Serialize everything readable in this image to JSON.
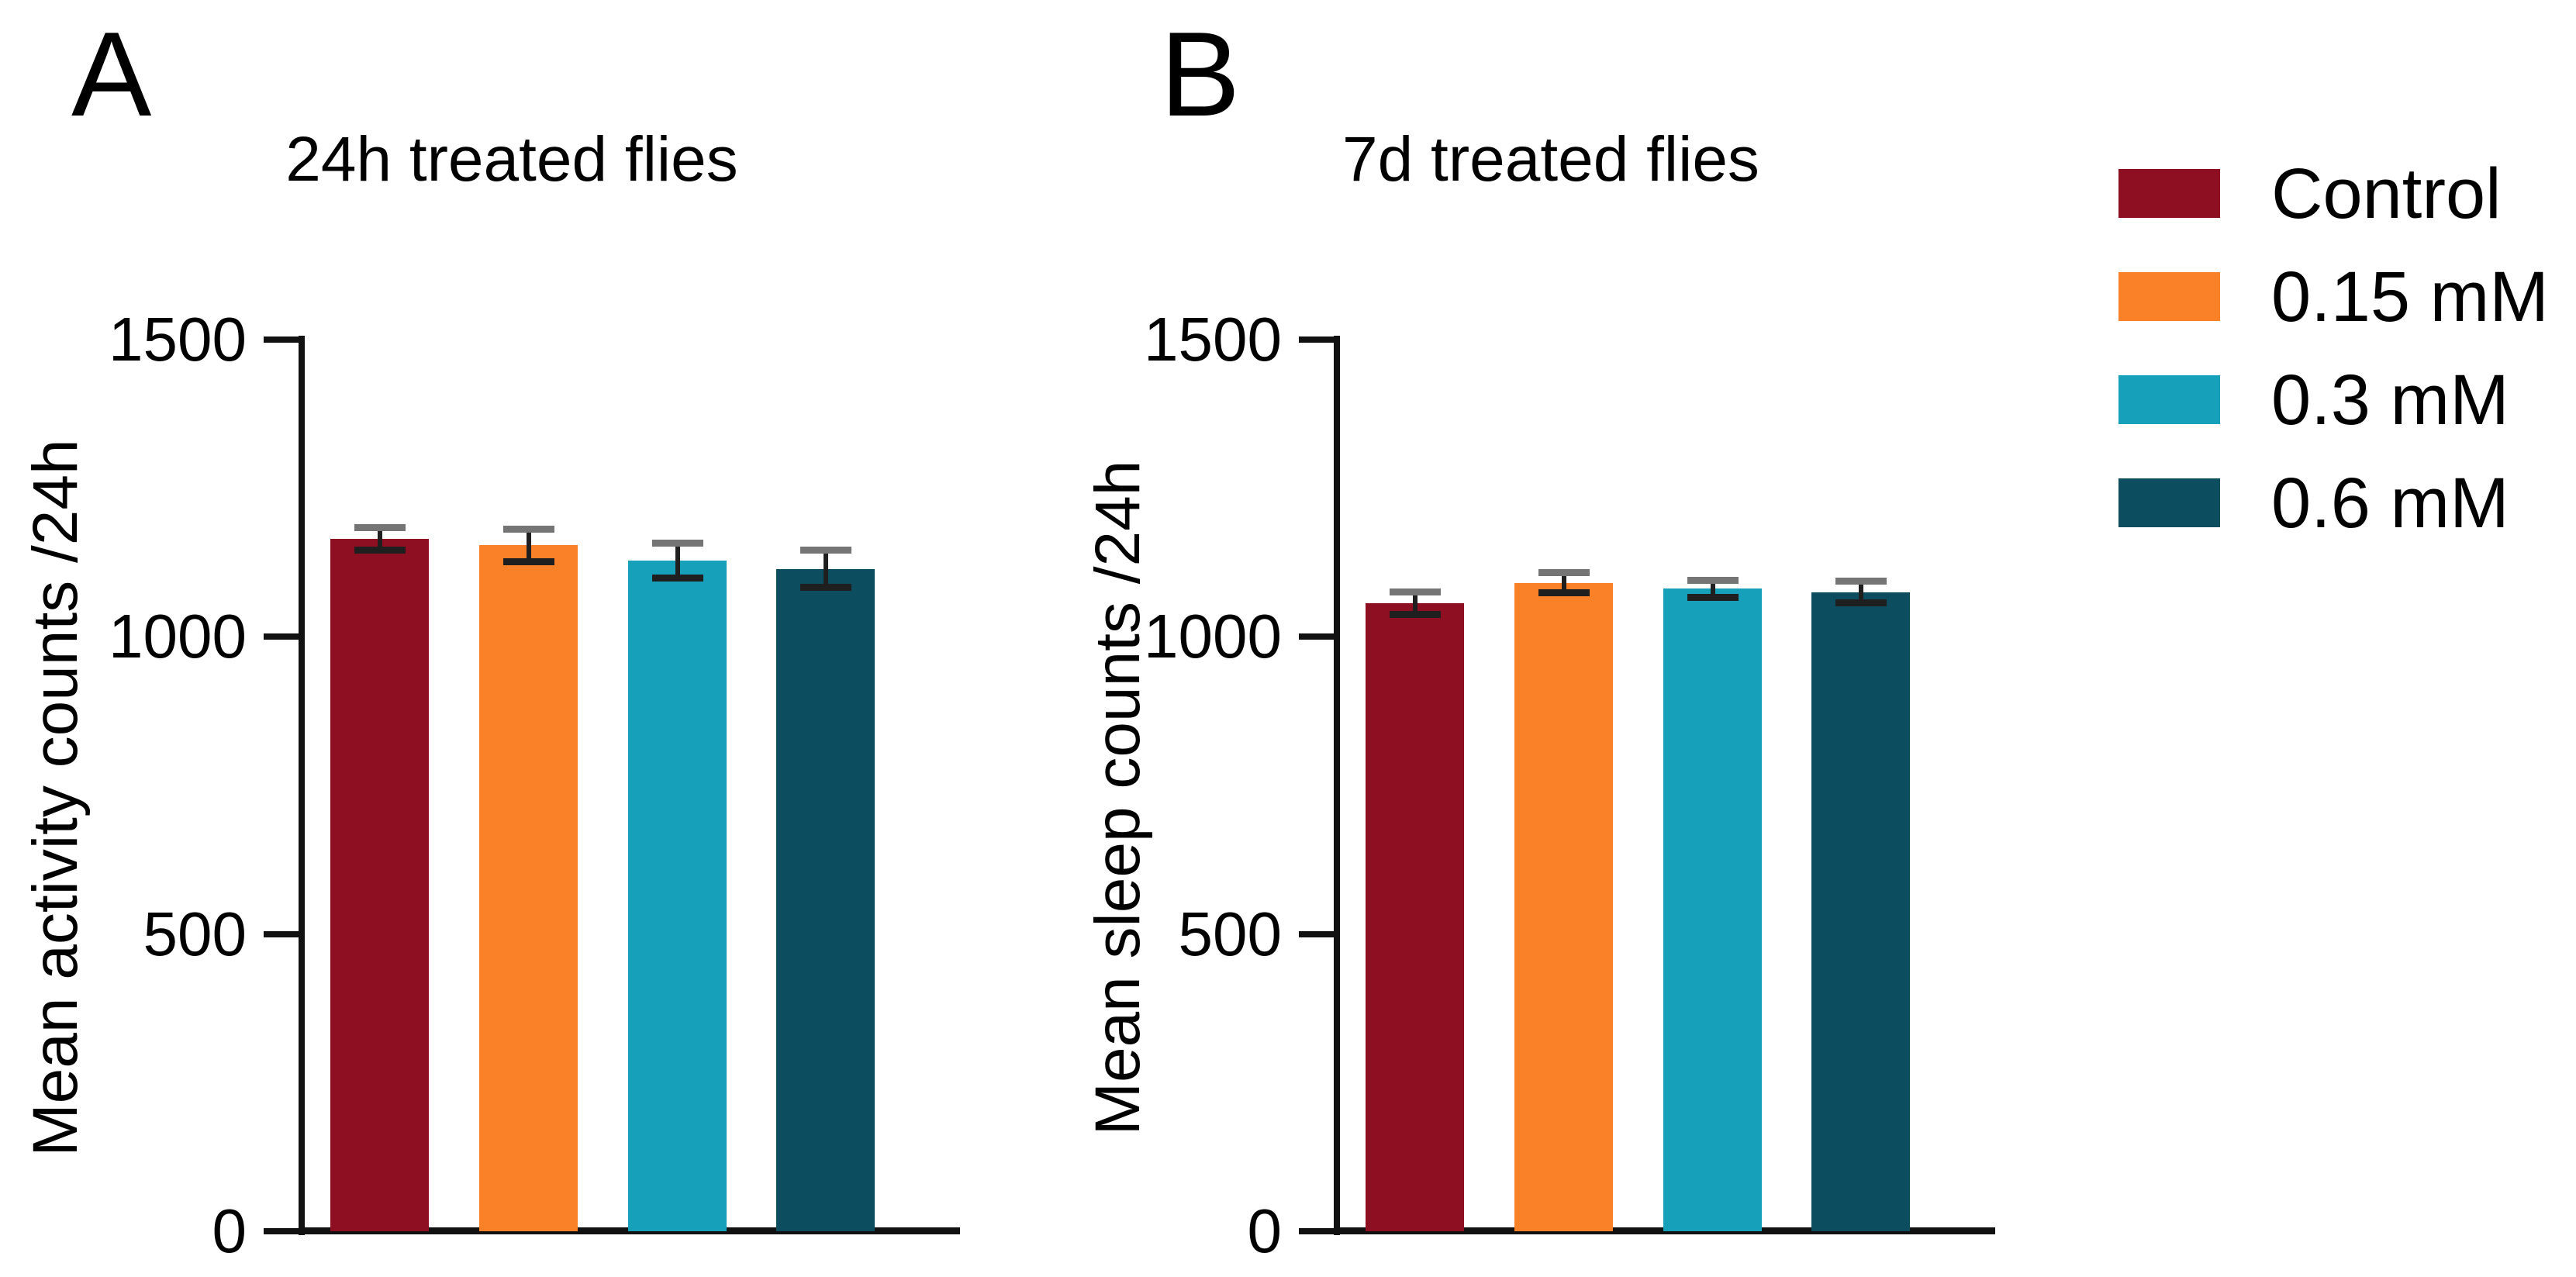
{
  "page": {
    "background": "#ffffff"
  },
  "figure": {
    "panels": [
      {
        "letter": "A",
        "title": "24h treated flies",
        "ylabel": "Mean activity counts /24h"
      },
      {
        "letter": "B",
        "title": "7d treated flies",
        "ylabel": "Mean sleep counts /24h"
      }
    ],
    "legend": {
      "items": [
        {
          "label": "Control",
          "color": "#8E0F22"
        },
        {
          "label": "0.15 mM",
          "color": "#FA8128"
        },
        {
          "label": "0.3 mM",
          "color": "#16A0BA"
        },
        {
          "label": "0.6 mM",
          "color": "#0C4D60"
        }
      ]
    }
  },
  "colors": {
    "axis": "#111111",
    "error_bar": "#1f1f1f",
    "error_cap_top": "#757575",
    "text": "#000000",
    "background": "#ffffff"
  },
  "chart_data": [
    {
      "type": "bar",
      "panel": "A",
      "title": "24h treated flies",
      "xlabel": "",
      "ylabel": "Mean activity counts /24h",
      "categories": [
        "Control",
        "0.15 mM",
        "0.3 mM",
        "0.6 mM"
      ],
      "values": [
        1165,
        1154,
        1128,
        1114
      ],
      "errors_sem": [
        25,
        33,
        35,
        37
      ],
      "bar_colors": [
        "#8E0F22",
        "#FA8128",
        "#16A0BA",
        "#0C4D60"
      ],
      "ylim": [
        0,
        1500
      ],
      "yticks": [
        0,
        500,
        1000,
        1500
      ],
      "grid": false,
      "legend_position": "right"
    },
    {
      "type": "bar",
      "panel": "B",
      "title": "7d treated flies",
      "xlabel": "",
      "ylabel": "Mean sleep counts /24h",
      "categories": [
        "Control",
        "0.15 mM",
        "0.3 mM",
        "0.6 mM"
      ],
      "values": [
        1057,
        1091,
        1081,
        1075
      ],
      "errors_sem": [
        25,
        23,
        20,
        24
      ],
      "bar_colors": [
        "#8E0F22",
        "#FA8128",
        "#16A0BA",
        "#0C4D60"
      ],
      "ylim": [
        0,
        1500
      ],
      "yticks": [
        0,
        500,
        1000,
        1500
      ],
      "grid": false,
      "legend_position": "right"
    }
  ]
}
